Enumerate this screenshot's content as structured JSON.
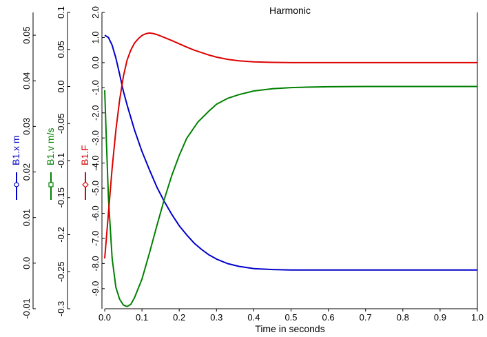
{
  "chart_data": {
    "type": "line",
    "title": "Harmonic",
    "xlabel": "Time in seconds",
    "xlim": [
      0.0,
      1.0
    ],
    "x_ticks": [
      "0.0",
      "0.1",
      "0.2",
      "0.3",
      "0.4",
      "0.5",
      "0.6",
      "0.7",
      "0.8",
      "0.9",
      "1.0"
    ],
    "axes": [
      {
        "id": "x",
        "label": "B1.x m",
        "color": "#0000cc",
        "marker": "circle",
        "ylim": [
          -0.01,
          0.055
        ],
        "ticks": [
          "-0.01",
          "0.0",
          "0.01",
          "0.02",
          "0.03",
          "0.04",
          "0.05"
        ],
        "tick_values": [
          -0.01,
          0.0,
          0.01,
          0.02,
          0.03,
          0.04,
          0.05
        ]
      },
      {
        "id": "v",
        "label": "B1.v m/s",
        "color": "#008000",
        "marker": "square",
        "ylim": [
          -0.3,
          0.1
        ],
        "ticks": [
          "-0.3",
          "-0.25",
          "-0.2",
          "-0.15",
          "-0.1",
          "-0.05",
          "0.0",
          "0.05",
          "0.1"
        ],
        "tick_values": [
          -0.3,
          -0.25,
          -0.2,
          -0.15,
          -0.1,
          -0.05,
          0.0,
          0.05,
          0.1
        ]
      },
      {
        "id": "F",
        "label": "B1.F",
        "color": "#dd0000",
        "marker": "diamond",
        "ylim": [
          -9.8,
          2.0
        ],
        "ticks": [
          "-9.0",
          "-8.0",
          "-7.0",
          "-6.0",
          "-5.0",
          "-4.0",
          "-3.0",
          "-2.0",
          "-1.0",
          "0.0",
          "1.0",
          "2.0"
        ],
        "tick_values": [
          -9.0,
          -8.0,
          -7.0,
          -6.0,
          -5.0,
          -4.0,
          -3.0,
          -2.0,
          -1.0,
          0.0,
          1.0,
          2.0
        ]
      }
    ],
    "series": [
      {
        "name": "B1.x m",
        "axis": "x",
        "color": "#0000cc",
        "x": [
          0.0,
          0.01,
          0.02,
          0.03,
          0.04,
          0.05,
          0.06,
          0.08,
          0.1,
          0.12,
          0.14,
          0.16,
          0.18,
          0.2,
          0.22,
          0.24,
          0.26,
          0.28,
          0.3,
          0.33,
          0.36,
          0.4,
          0.45,
          0.5,
          0.6,
          0.7,
          0.8,
          0.9,
          1.0
        ],
        "y": [
          0.05,
          0.0495,
          0.0478,
          0.045,
          0.0415,
          0.0377,
          0.0347,
          0.0292,
          0.0245,
          0.0205,
          0.0167,
          0.0135,
          0.0107,
          0.0082,
          0.0062,
          0.0044,
          0.003,
          0.0018,
          0.0009,
          -0.0001,
          -0.0007,
          -0.0012,
          -0.0014,
          -0.0015,
          -0.0015,
          -0.0015,
          -0.0015,
          -0.0015,
          -0.0015
        ]
      },
      {
        "name": "B1.v m/s",
        "axis": "v",
        "color": "#008000",
        "x": [
          0.0,
          0.005,
          0.01,
          0.02,
          0.03,
          0.04,
          0.05,
          0.06,
          0.07,
          0.08,
          0.1,
          0.12,
          0.14,
          0.16,
          0.18,
          0.2,
          0.22,
          0.25,
          0.28,
          0.3,
          0.33,
          0.36,
          0.4,
          0.45,
          0.5,
          0.55,
          0.6,
          0.7,
          0.8,
          0.9,
          1.0
        ],
        "y": [
          -0.005,
          -0.08,
          -0.15,
          -0.232,
          -0.271,
          -0.287,
          -0.295,
          -0.297,
          -0.294,
          -0.285,
          -0.26,
          -0.225,
          -0.188,
          -0.152,
          -0.12,
          -0.093,
          -0.07,
          -0.048,
          -0.033,
          -0.024,
          -0.016,
          -0.011,
          -0.006,
          -0.003,
          -0.0015,
          -0.0008,
          -0.0004,
          0.0,
          0.0,
          0.0,
          0.0
        ]
      },
      {
        "name": "B1.F",
        "axis": "F",
        "color": "#dd0000",
        "x": [
          0.0,
          0.005,
          0.01,
          0.02,
          0.03,
          0.04,
          0.05,
          0.06,
          0.07,
          0.08,
          0.09,
          0.1,
          0.11,
          0.12,
          0.13,
          0.14,
          0.16,
          0.18,
          0.2,
          0.22,
          0.24,
          0.26,
          0.28,
          0.3,
          0.33,
          0.36,
          0.4,
          0.45,
          0.5,
          0.6,
          0.7,
          0.8,
          0.9,
          1.0
        ],
        "y": [
          -7.8,
          -6.9,
          -6.0,
          -4.2,
          -2.7,
          -1.5,
          -0.55,
          0.1,
          0.5,
          0.78,
          0.95,
          1.08,
          1.15,
          1.18,
          1.16,
          1.12,
          1.0,
          0.88,
          0.75,
          0.62,
          0.5,
          0.4,
          0.3,
          0.22,
          0.13,
          0.07,
          0.03,
          0.01,
          0.0,
          0.0,
          0.0,
          0.0,
          0.0,
          0.0
        ]
      }
    ],
    "grid": false,
    "legend": "axis-labels-left"
  }
}
